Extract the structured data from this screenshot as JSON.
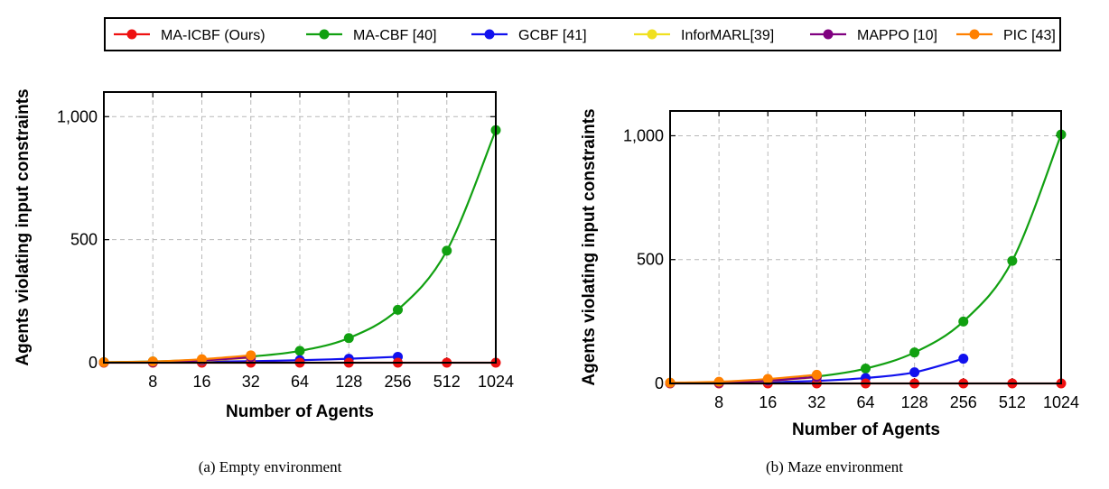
{
  "legend": {
    "entries": [
      {
        "name": "MA-ICBF (Ours)",
        "color": "#ee1111"
      },
      {
        "name": "MA-CBF [40]",
        "color": "#11a011"
      },
      {
        "name": "GCBF [41]",
        "color": "#1111ee"
      },
      {
        "name": "InforMARL[39]",
        "color": "#f0e020"
      },
      {
        "name": "MAPPO [10]",
        "color": "#800080"
      },
      {
        "name": "PIC [43]",
        "color": "#ff8000"
      }
    ]
  },
  "chart_data": [
    {
      "type": "line",
      "caption": "(a) Empty environment",
      "xlabel": "Number of Agents",
      "ylabel": "Agents violating input constraints",
      "categories": [
        "8",
        "16",
        "32",
        "64",
        "128",
        "256",
        "512",
        "1024"
      ],
      "yticks": [
        "0",
        "500",
        "1,000"
      ],
      "ylim": [
        0,
        1100
      ],
      "grid": true,
      "legend_position": "top",
      "series": [
        {
          "name": "MA-ICBF (Ours)",
          "points": [
            [
              4,
              0
            ],
            [
              8,
              0
            ],
            [
              16,
              0
            ],
            [
              32,
              0
            ],
            [
              64,
              0
            ],
            [
              128,
              0
            ],
            [
              256,
              0
            ],
            [
              512,
              0
            ],
            [
              1024,
              0
            ]
          ]
        },
        {
          "name": "MA-CBF [40]",
          "points": [
            [
              4,
              2
            ],
            [
              8,
              5
            ],
            [
              16,
              12
            ],
            [
              32,
              25
            ],
            [
              64,
              48
            ],
            [
              128,
              100
            ],
            [
              256,
              215
            ],
            [
              512,
              455
            ],
            [
              1024,
              945
            ]
          ]
        },
        {
          "name": "GCBF [41]",
          "points": [
            [
              4,
              1
            ],
            [
              8,
              2
            ],
            [
              16,
              4
            ],
            [
              32,
              6
            ],
            [
              64,
              10
            ],
            [
              128,
              16
            ],
            [
              256,
              24
            ]
          ]
        },
        {
          "name": "InforMARL[39]",
          "points": [
            [
              4,
              1
            ],
            [
              8,
              2
            ],
            [
              16,
              8
            ],
            [
              32,
              20
            ]
          ]
        },
        {
          "name": "MAPPO [10]",
          "points": [
            [
              4,
              1
            ],
            [
              8,
              2
            ],
            [
              16,
              9
            ],
            [
              32,
              22
            ]
          ]
        },
        {
          "name": "PIC [43]",
          "points": [
            [
              4,
              2
            ],
            [
              8,
              5
            ],
            [
              16,
              14
            ],
            [
              32,
              30
            ]
          ]
        }
      ]
    },
    {
      "type": "line",
      "caption": "(b) Maze environment",
      "xlabel": "Number of Agents",
      "ylabel": "Agents violating input constraints",
      "categories": [
        "8",
        "16",
        "32",
        "64",
        "128",
        "256",
        "512",
        "1024"
      ],
      "yticks": [
        "0",
        "500",
        "1,000"
      ],
      "ylim": [
        0,
        1100
      ],
      "grid": true,
      "legend_position": "top",
      "series": [
        {
          "name": "MA-ICBF (Ours)",
          "points": [
            [
              4,
              0
            ],
            [
              8,
              0
            ],
            [
              16,
              0
            ],
            [
              32,
              0
            ],
            [
              64,
              0
            ],
            [
              128,
              0
            ],
            [
              256,
              0
            ],
            [
              512,
              0
            ],
            [
              1024,
              0
            ]
          ]
        },
        {
          "name": "MA-CBF [40]",
          "points": [
            [
              4,
              2
            ],
            [
              8,
              5
            ],
            [
              16,
              14
            ],
            [
              32,
              28
            ],
            [
              64,
              60
            ],
            [
              128,
              125
            ],
            [
              256,
              250
            ],
            [
              512,
              495
            ],
            [
              1024,
              1005
            ]
          ]
        },
        {
          "name": "GCBF [41]",
          "points": [
            [
              4,
              1
            ],
            [
              8,
              2
            ],
            [
              16,
              5
            ],
            [
              32,
              10
            ],
            [
              64,
              22
            ],
            [
              128,
              45
            ],
            [
              256,
              100
            ]
          ]
        },
        {
          "name": "InforMARL[39]",
          "points": [
            [
              4,
              1
            ],
            [
              8,
              3
            ],
            [
              16,
              10
            ],
            [
              32,
              25
            ]
          ]
        },
        {
          "name": "MAPPO [10]",
          "points": [
            [
              4,
              1
            ],
            [
              8,
              3
            ],
            [
              16,
              11
            ],
            [
              32,
              26
            ]
          ]
        },
        {
          "name": "PIC [43]",
          "points": [
            [
              4,
              3
            ],
            [
              8,
              7
            ],
            [
              16,
              18
            ],
            [
              32,
              35
            ]
          ]
        }
      ]
    }
  ]
}
